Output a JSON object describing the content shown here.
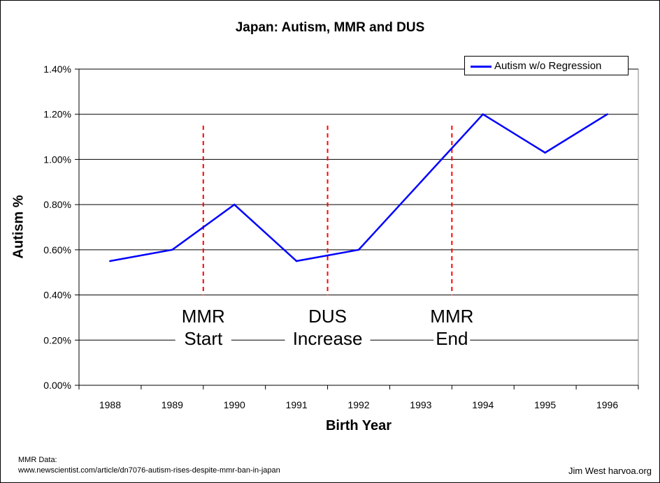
{
  "chart_data": {
    "type": "line",
    "title": "Japan: Autism, MMR and DUS",
    "xlabel": "Birth Year",
    "ylabel": "Autism %",
    "categories": [
      "1988",
      "1989",
      "1990",
      "1991",
      "1992",
      "1993",
      "1994",
      "1995",
      "1996"
    ],
    "y_ticks": [
      "0.00%",
      "0.20%",
      "0.40%",
      "0.60%",
      "0.80%",
      "1.00%",
      "1.20%",
      "1.40%"
    ],
    "ylim": [
      0,
      1.4
    ],
    "grid": true,
    "legend_position": "top-right",
    "series": [
      {
        "name": "Autism w/o Regression",
        "color": "#0000ff",
        "x": [
          0,
          1,
          2,
          3,
          4,
          5,
          6,
          7,
          8
        ],
        "values": [
          0.55,
          0.6,
          0.8,
          0.55,
          0.6,
          0.9,
          1.2,
          1.03,
          1.2
        ]
      }
    ],
    "annotations": [
      {
        "x": 1.5,
        "line1": "MMR",
        "line2": "Start",
        "color": "#ff0000"
      },
      {
        "x": 3.5,
        "line1": "DUS",
        "line2": "Increase",
        "color": "#ff0000"
      },
      {
        "x": 5.5,
        "line1": "MMR",
        "line2": "End",
        "color": "#ff0000"
      }
    ]
  },
  "footer": {
    "source_line1": "MMR Data:",
    "source_line2": "www.newscientist.com/article/dn7076-autism-rises-despite-mmr-ban-in-japan",
    "credit": "Jim West   harvoa.org"
  }
}
